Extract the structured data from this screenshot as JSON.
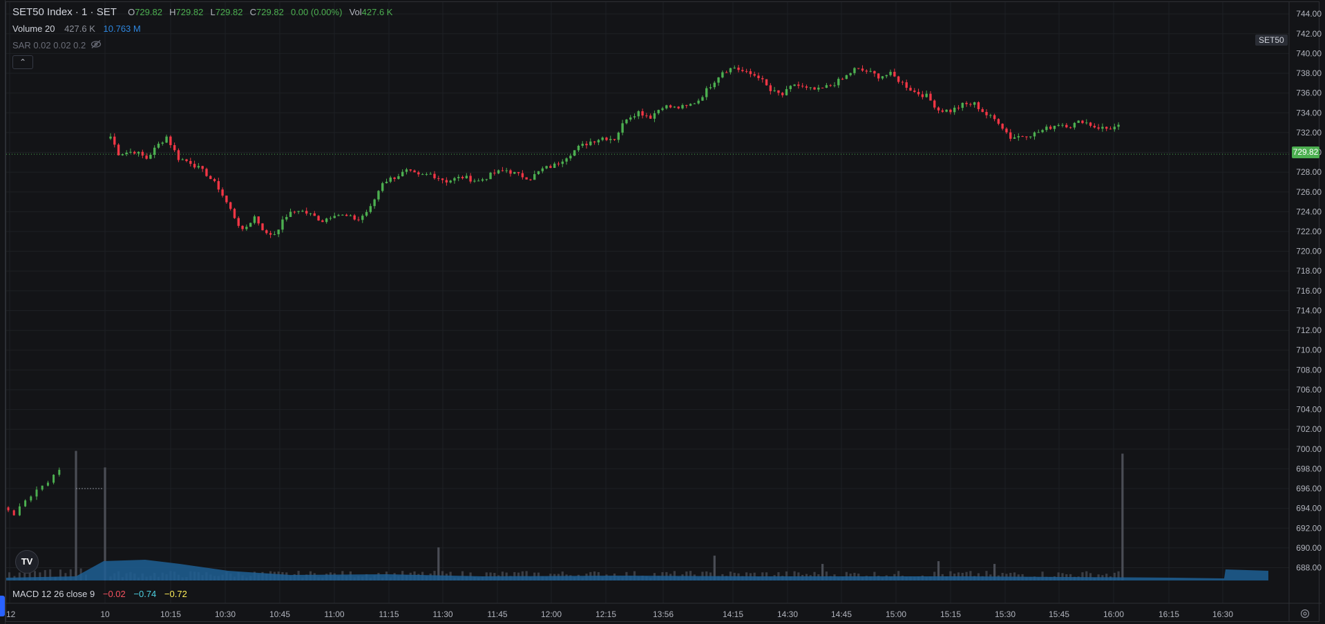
{
  "legend": {
    "symbol": "SET50 Index · 1 · SET",
    "ohlc": [
      {
        "k": "O",
        "v": "729.82"
      },
      {
        "k": "H",
        "v": "729.82"
      },
      {
        "k": "L",
        "v": "729.82"
      },
      {
        "k": "C",
        "v": "729.82"
      }
    ],
    "change": "0.00 (0.00%)",
    "vol_label": "Vol",
    "vol_value": "427.6 K",
    "volume_study": {
      "name": "Volume 20",
      "v1": "427.6 K",
      "v2": "10.763 M"
    },
    "sar_study": "SAR 0.02 0.02 0.2",
    "collapse_icon": "chevron-up-icon",
    "macd": {
      "name": "MACD 12 26 close 9",
      "v1": "−0.02",
      "v2": "−0.74",
      "v3": "−0.72"
    }
  },
  "symbol_tag": "SET50",
  "last_price": "729.82",
  "logo_text": "TV",
  "colors": {
    "up": "#4caf50",
    "down": "#f23645",
    "volume": "#1f5f94",
    "bg": "#131417",
    "grid": "#1e2024"
  },
  "chart_data": {
    "type": "candlestick",
    "y_ticks": [
      742,
      740,
      738,
      736,
      734,
      732,
      730,
      728,
      726,
      724,
      722,
      720,
      718,
      716,
      714,
      712,
      710,
      708,
      706,
      704,
      702,
      700,
      698,
      696,
      694,
      692,
      690,
      688
    ],
    "y_tick_labels": [
      "744.00",
      "742.00",
      "740.00",
      "738.00",
      "736.00",
      "734.00",
      "732.00",
      "730.00",
      "728.00",
      "726.00",
      "724.00",
      "722.00",
      "720.00",
      "718.00",
      "716.00",
      "714.00",
      "712.00",
      "710.00",
      "708.00",
      "706.00",
      "704.00",
      "702.00",
      "700.00",
      "698.00",
      "696.00",
      "694.00",
      "692.00",
      "690.00",
      "688.00"
    ],
    "y_tick_values": [
      744,
      742,
      740,
      738,
      736,
      734,
      732,
      730,
      728,
      726,
      724,
      722,
      720,
      718,
      716,
      714,
      712,
      710,
      708,
      706,
      704,
      702,
      700,
      698,
      696,
      694,
      692,
      690,
      688
    ],
    "ylim": [
      686.5,
      745.2
    ],
    "x_tick_labels": [
      ":12",
      "10",
      "10:15",
      "10:30",
      "10:45",
      "11:00",
      "11:15",
      "11:30",
      "11:45",
      "12:00",
      "12:15",
      "13:56",
      "14:15",
      "14:30",
      "14:45",
      "15:00",
      "15:15",
      "15:30",
      "15:45",
      "16:00",
      "16:15",
      "16:30"
    ],
    "last_close": 729.82,
    "prev_session": [
      693.8,
      693.3,
      694.2,
      694.8,
      695.2,
      695.9,
      696.3,
      696.6,
      697.4,
      697.9
    ],
    "prev_session_close": 696.0,
    "price_path": [
      [
        0,
        731.6
      ],
      [
        2,
        729.9
      ],
      [
        6,
        730.1
      ],
      [
        9,
        729.4
      ],
      [
        12,
        730.8
      ],
      [
        14,
        731.6
      ],
      [
        17,
        729.4
      ],
      [
        20,
        729.0
      ],
      [
        24,
        727.8
      ],
      [
        27,
        726.4
      ],
      [
        30,
        724.2
      ],
      [
        33,
        722.0
      ],
      [
        36,
        723.5
      ],
      [
        39,
        721.7
      ],
      [
        41,
        721.8
      ],
      [
        44,
        723.6
      ],
      [
        47,
        724.2
      ],
      [
        50,
        723.7
      ],
      [
        53,
        723.1
      ],
      [
        56,
        723.8
      ],
      [
        59,
        723.5
      ],
      [
        62,
        723.2
      ],
      [
        65,
        724.4
      ],
      [
        68,
        727.0
      ],
      [
        71,
        727.5
      ],
      [
        74,
        728.1
      ],
      [
        77,
        727.6
      ],
      [
        80,
        727.8
      ],
      [
        84,
        727.1
      ],
      [
        88,
        727.5
      ],
      [
        92,
        727.1
      ],
      [
        96,
        727.9
      ],
      [
        99,
        728.2
      ],
      [
        102,
        727.7
      ],
      [
        105,
        727.4
      ],
      [
        108,
        728.3
      ],
      [
        111,
        728.7
      ],
      [
        114,
        729.6
      ],
      [
        117,
        730.5
      ],
      [
        120,
        731.1
      ],
      [
        123,
        731.5
      ],
      [
        126,
        731.4
      ],
      [
        129,
        733.5
      ],
      [
        132,
        734.1
      ],
      [
        135,
        733.6
      ],
      [
        138,
        734.7
      ],
      [
        141,
        734.5
      ],
      [
        144,
        734.6
      ],
      [
        147,
        735.3
      ],
      [
        150,
        736.8
      ],
      [
        153,
        738.2
      ],
      [
        156,
        738.6
      ],
      [
        159,
        738.0
      ],
      [
        162,
        737.7
      ],
      [
        165,
        736.2
      ],
      [
        168,
        735.8
      ],
      [
        171,
        736.9
      ],
      [
        174,
        736.4
      ],
      [
        177,
        736.3
      ],
      [
        180,
        736.8
      ],
      [
        183,
        737.4
      ],
      [
        186,
        738.4
      ],
      [
        189,
        738.2
      ],
      [
        192,
        737.7
      ],
      [
        195,
        737.9
      ],
      [
        198,
        737.0
      ],
      [
        201,
        736.1
      ],
      [
        204,
        735.7
      ],
      [
        207,
        734.3
      ],
      [
        210,
        734.2
      ],
      [
        213,
        734.8
      ],
      [
        216,
        734.9
      ],
      [
        219,
        733.8
      ],
      [
        222,
        733.1
      ],
      [
        225,
        731.5
      ],
      [
        228,
        731.7
      ],
      [
        231,
        731.9
      ],
      [
        234,
        732.4
      ],
      [
        237,
        732.9
      ],
      [
        240,
        732.7
      ],
      [
        243,
        733.2
      ],
      [
        246,
        732.6
      ],
      [
        249,
        732.4
      ],
      [
        252,
        732.6
      ]
    ],
    "volume_spikes": [
      [
        -1,
        0.47
      ],
      [
        0,
        0.41
      ],
      [
        82,
        0.12
      ],
      [
        151,
        0.09
      ],
      [
        178,
        0.06
      ],
      [
        207,
        0.07
      ],
      [
        221,
        0.06
      ],
      [
        253,
        0.46
      ]
    ]
  }
}
